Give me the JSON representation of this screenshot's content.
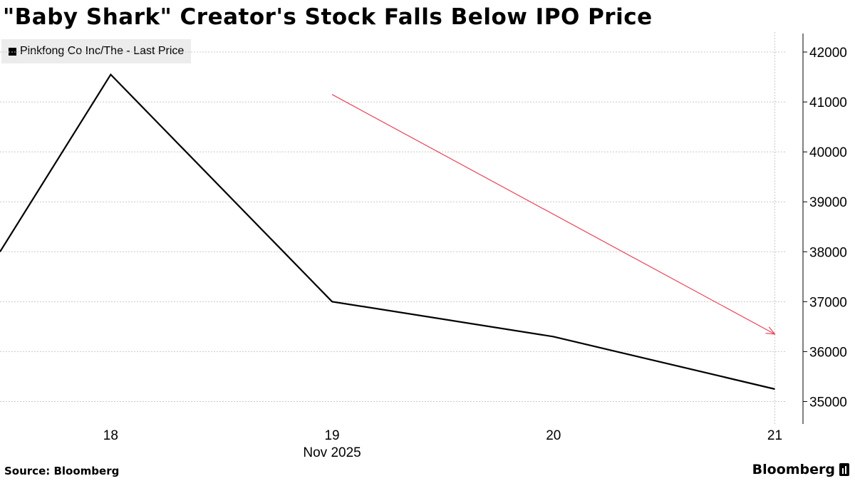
{
  "chart_data": {
    "type": "line",
    "title": "\"Baby Shark\" Creator's Stock Falls Below IPO Price",
    "series": [
      {
        "name": "Pinkfong Co Inc/The - Last Price",
        "color": "#000000",
        "x": [
          17.5,
          18,
          19,
          20,
          21
        ],
        "values": [
          38000,
          41550,
          37000,
          36300,
          35250
        ]
      }
    ],
    "x_ticks": [
      {
        "value": 18,
        "label": "18"
      },
      {
        "value": 19,
        "label": "19"
      },
      {
        "value": 20,
        "label": "20"
      },
      {
        "value": 21,
        "label": "21"
      }
    ],
    "x_sublabel": "Nov 2025",
    "xlim": [
      17.5,
      21.05
    ],
    "y_ticks": [
      35000,
      36000,
      37000,
      38000,
      39000,
      40000,
      41000,
      42000
    ],
    "ylim": [
      34550,
      42400
    ],
    "y_axis_side": "right",
    "grid": true,
    "legend_position": "top-left",
    "annotation": {
      "type": "arrow",
      "color": "#e8435a",
      "from": {
        "x": 19,
        "y": 41150
      },
      "to": {
        "x": 21,
        "y": 36350
      }
    },
    "source": "Source: Bloomberg",
    "brand": "Bloomberg"
  }
}
